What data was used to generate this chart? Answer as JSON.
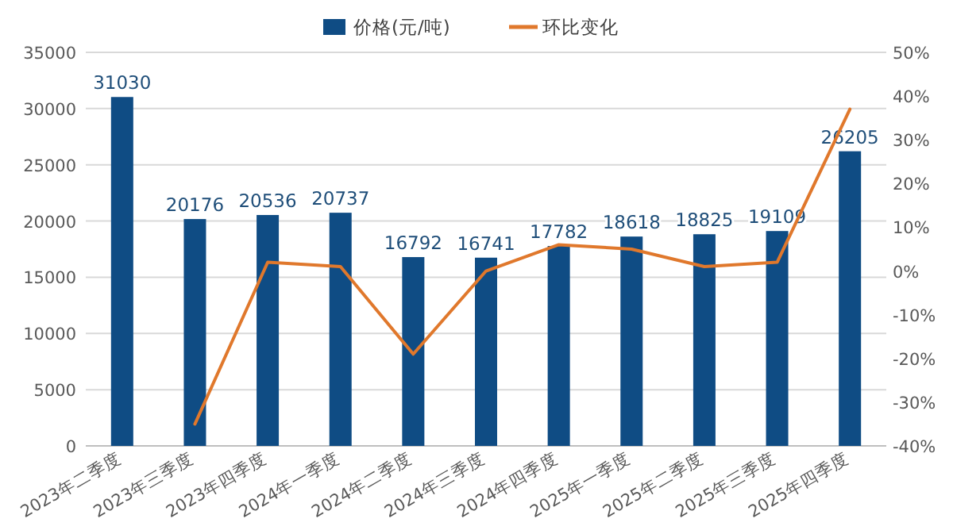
{
  "chart_data": {
    "type": "bar",
    "categories": [
      "2023年二季度",
      "2023年三季度",
      "2023年四季度",
      "2024年一季度",
      "2024年二季度",
      "2024年三季度",
      "2024年四季度",
      "2025年一季度",
      "2025年二季度",
      "2025年三季度",
      "2025年四季度"
    ],
    "series": [
      {
        "name": "价格(元/吨)",
        "color": "#0f4c84",
        "values": [
          31030,
          20176,
          20536,
          20737,
          16792,
          16741,
          17782,
          18618,
          18825,
          19109,
          26205
        ],
        "value_labels": [
          "31030",
          "20176",
          "20536",
          "20737",
          "16792",
          "16741",
          "17782",
          "18618",
          "18825",
          "19109",
          "26205"
        ]
      },
      {
        "name": "环比变化",
        "type": "line",
        "axis": "y2",
        "color": "#e0782c",
        "values": [
          null,
          -35,
          2,
          1,
          -19,
          0,
          6,
          5,
          1,
          2,
          37
        ]
      }
    ],
    "ylim": [
      0,
      35000
    ],
    "yticks": [
      0,
      5000,
      10000,
      15000,
      20000,
      25000,
      30000,
      35000
    ],
    "y2lim": [
      -40,
      50
    ],
    "y2ticks": [
      {
        "value": -40,
        "label": "-40%"
      },
      {
        "value": -30,
        "label": "-30%"
      },
      {
        "value": -20,
        "label": "-20%"
      },
      {
        "value": -10,
        "label": "-10%"
      },
      {
        "value": 0,
        "label": "0%"
      },
      {
        "value": 10,
        "label": "10%"
      },
      {
        "value": 20,
        "label": "20%"
      },
      {
        "value": 30,
        "label": "30%"
      },
      {
        "value": 40,
        "label": "40%"
      },
      {
        "value": 50,
        "label": "50%"
      }
    ],
    "grid": "y",
    "legend": "top"
  }
}
